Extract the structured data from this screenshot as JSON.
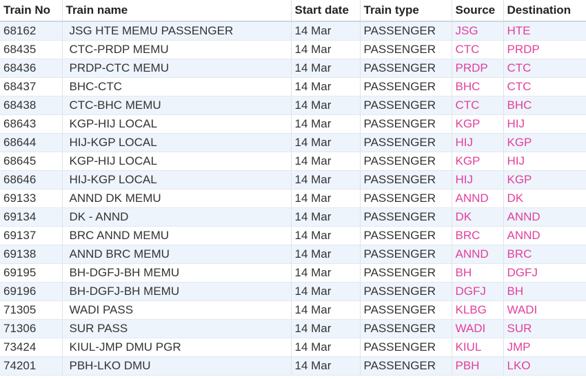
{
  "table": {
    "header": [
      "Train No",
      "Train name",
      "Start date",
      "Train type",
      "Source",
      "Destination"
    ],
    "rows": [
      [
        "68162",
        "JSG HTE MEMU PASSENGER",
        "14 Mar",
        "PASSENGER",
        "JSG",
        "HTE"
      ],
      [
        "68435",
        "CTC-PRDP MEMU",
        "14 Mar",
        "PASSENGER",
        "CTC",
        "PRDP"
      ],
      [
        "68436",
        "PRDP-CTC MEMU",
        "14 Mar",
        "PASSENGER",
        "PRDP",
        "CTC"
      ],
      [
        "68437",
        "BHC-CTC",
        "14 Mar",
        "PASSENGER",
        "BHC",
        "CTC"
      ],
      [
        "68438",
        "CTC-BHC MEMU",
        "14 Mar",
        "PASSENGER",
        "CTC",
        "BHC"
      ],
      [
        "68643",
        "KGP-HIJ LOCAL",
        "14 Mar",
        "PASSENGER",
        "KGP",
        "HIJ"
      ],
      [
        "68644",
        "HIJ-KGP LOCAL",
        "14 Mar",
        "PASSENGER",
        "HIJ",
        "KGP"
      ],
      [
        "68645",
        "KGP-HIJ LOCAL",
        "14 Mar",
        "PASSENGER",
        "KGP",
        "HIJ"
      ],
      [
        "68646",
        "HIJ-KGP LOCAL",
        "14 Mar",
        "PASSENGER",
        "HIJ",
        "KGP"
      ],
      [
        "69133",
        "ANND DK MEMU",
        "14 Mar",
        "PASSENGER",
        "ANND",
        "DK"
      ],
      [
        "69134",
        "DK - ANND",
        "14 Mar",
        "PASSENGER",
        "DK",
        "ANND"
      ],
      [
        "69137",
        "BRC ANND MEMU",
        "14 Mar",
        "PASSENGER",
        "BRC",
        "ANND"
      ],
      [
        "69138",
        "ANND BRC MEMU",
        "14 Mar",
        "PASSENGER",
        "ANND",
        "BRC"
      ],
      [
        "69195",
        "BH-DGFJ-BH MEMU",
        "14 Mar",
        "PASSENGER",
        "BH",
        "DGFJ"
      ],
      [
        "69196",
        "BH-DGFJ-BH MEMU",
        "14 Mar",
        "PASSENGER",
        "DGFJ",
        "BH"
      ],
      [
        "71305",
        "WADI PASS",
        "14 Mar",
        "PASSENGER",
        "KLBG",
        "WADI"
      ],
      [
        "71306",
        "SUR PASS",
        "14 Mar",
        "PASSENGER",
        "WADI",
        "SUR"
      ],
      [
        "73424",
        "KIUL-JMP DMU PGR",
        "14 Mar",
        "PASSENGER",
        "KIUL",
        "JMP"
      ],
      [
        "74201",
        "PBH-LKO DMU",
        "14 Mar",
        "PASSENGER",
        "PBH",
        "LKO"
      ]
    ]
  }
}
